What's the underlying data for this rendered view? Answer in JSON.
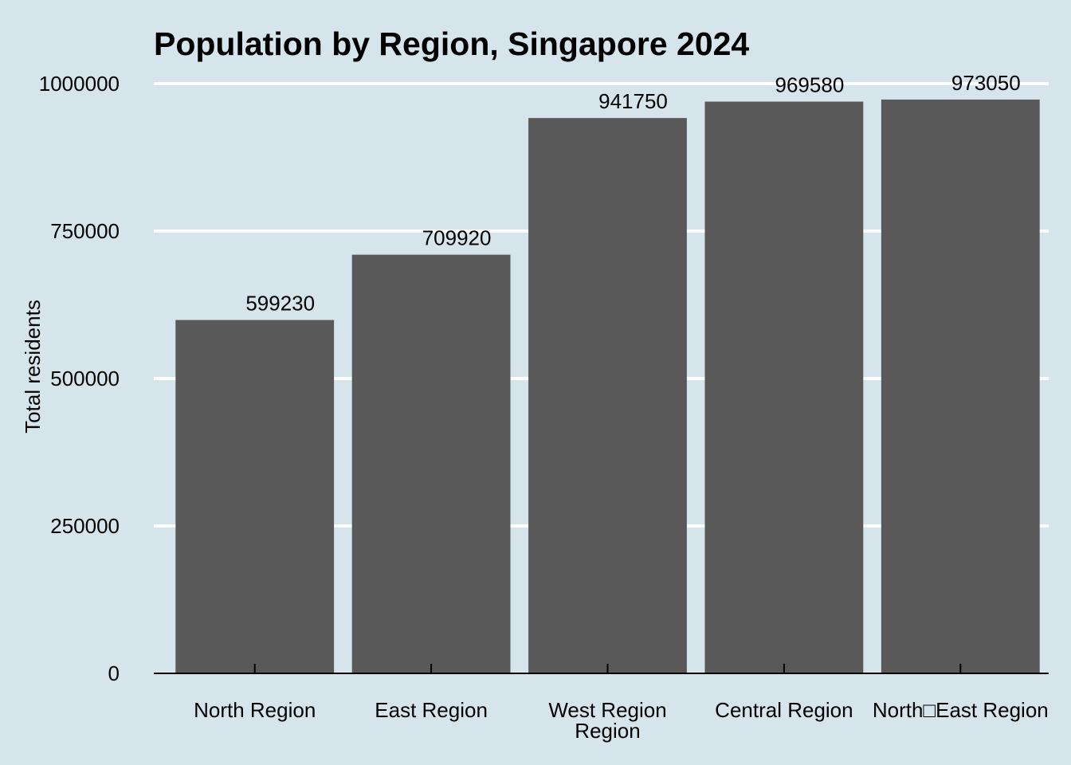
{
  "chart_data": {
    "type": "bar",
    "title": "Population by Region, Singapore 2024",
    "xlabel": "",
    "ylabel": "Total residents",
    "categories": [
      "North Region",
      "East Region",
      "West Region Region",
      "Central Region",
      "North□East Region"
    ],
    "category_lines": [
      [
        "North Region"
      ],
      [
        "East Region"
      ],
      [
        "West Region",
        "Region"
      ],
      [
        "Central Region"
      ],
      [
        "North□East Region"
      ]
    ],
    "values": [
      599230,
      709920,
      941750,
      969580,
      973050
    ],
    "data_labels": [
      "599230",
      "709920",
      "941750",
      "969580",
      "973050"
    ],
    "ylim": [
      0,
      1000000
    ],
    "yticks": [
      0,
      250000,
      500000,
      750000,
      1000000
    ],
    "ytick_labels": [
      "0",
      "250000",
      "500000",
      "750000",
      "1000000"
    ],
    "grid": true,
    "legend": "none"
  },
  "colors": {
    "background": "#d6e5ec",
    "bar": "#595959",
    "grid": "#ffffff",
    "axis": "#000000",
    "text": "#000000"
  }
}
